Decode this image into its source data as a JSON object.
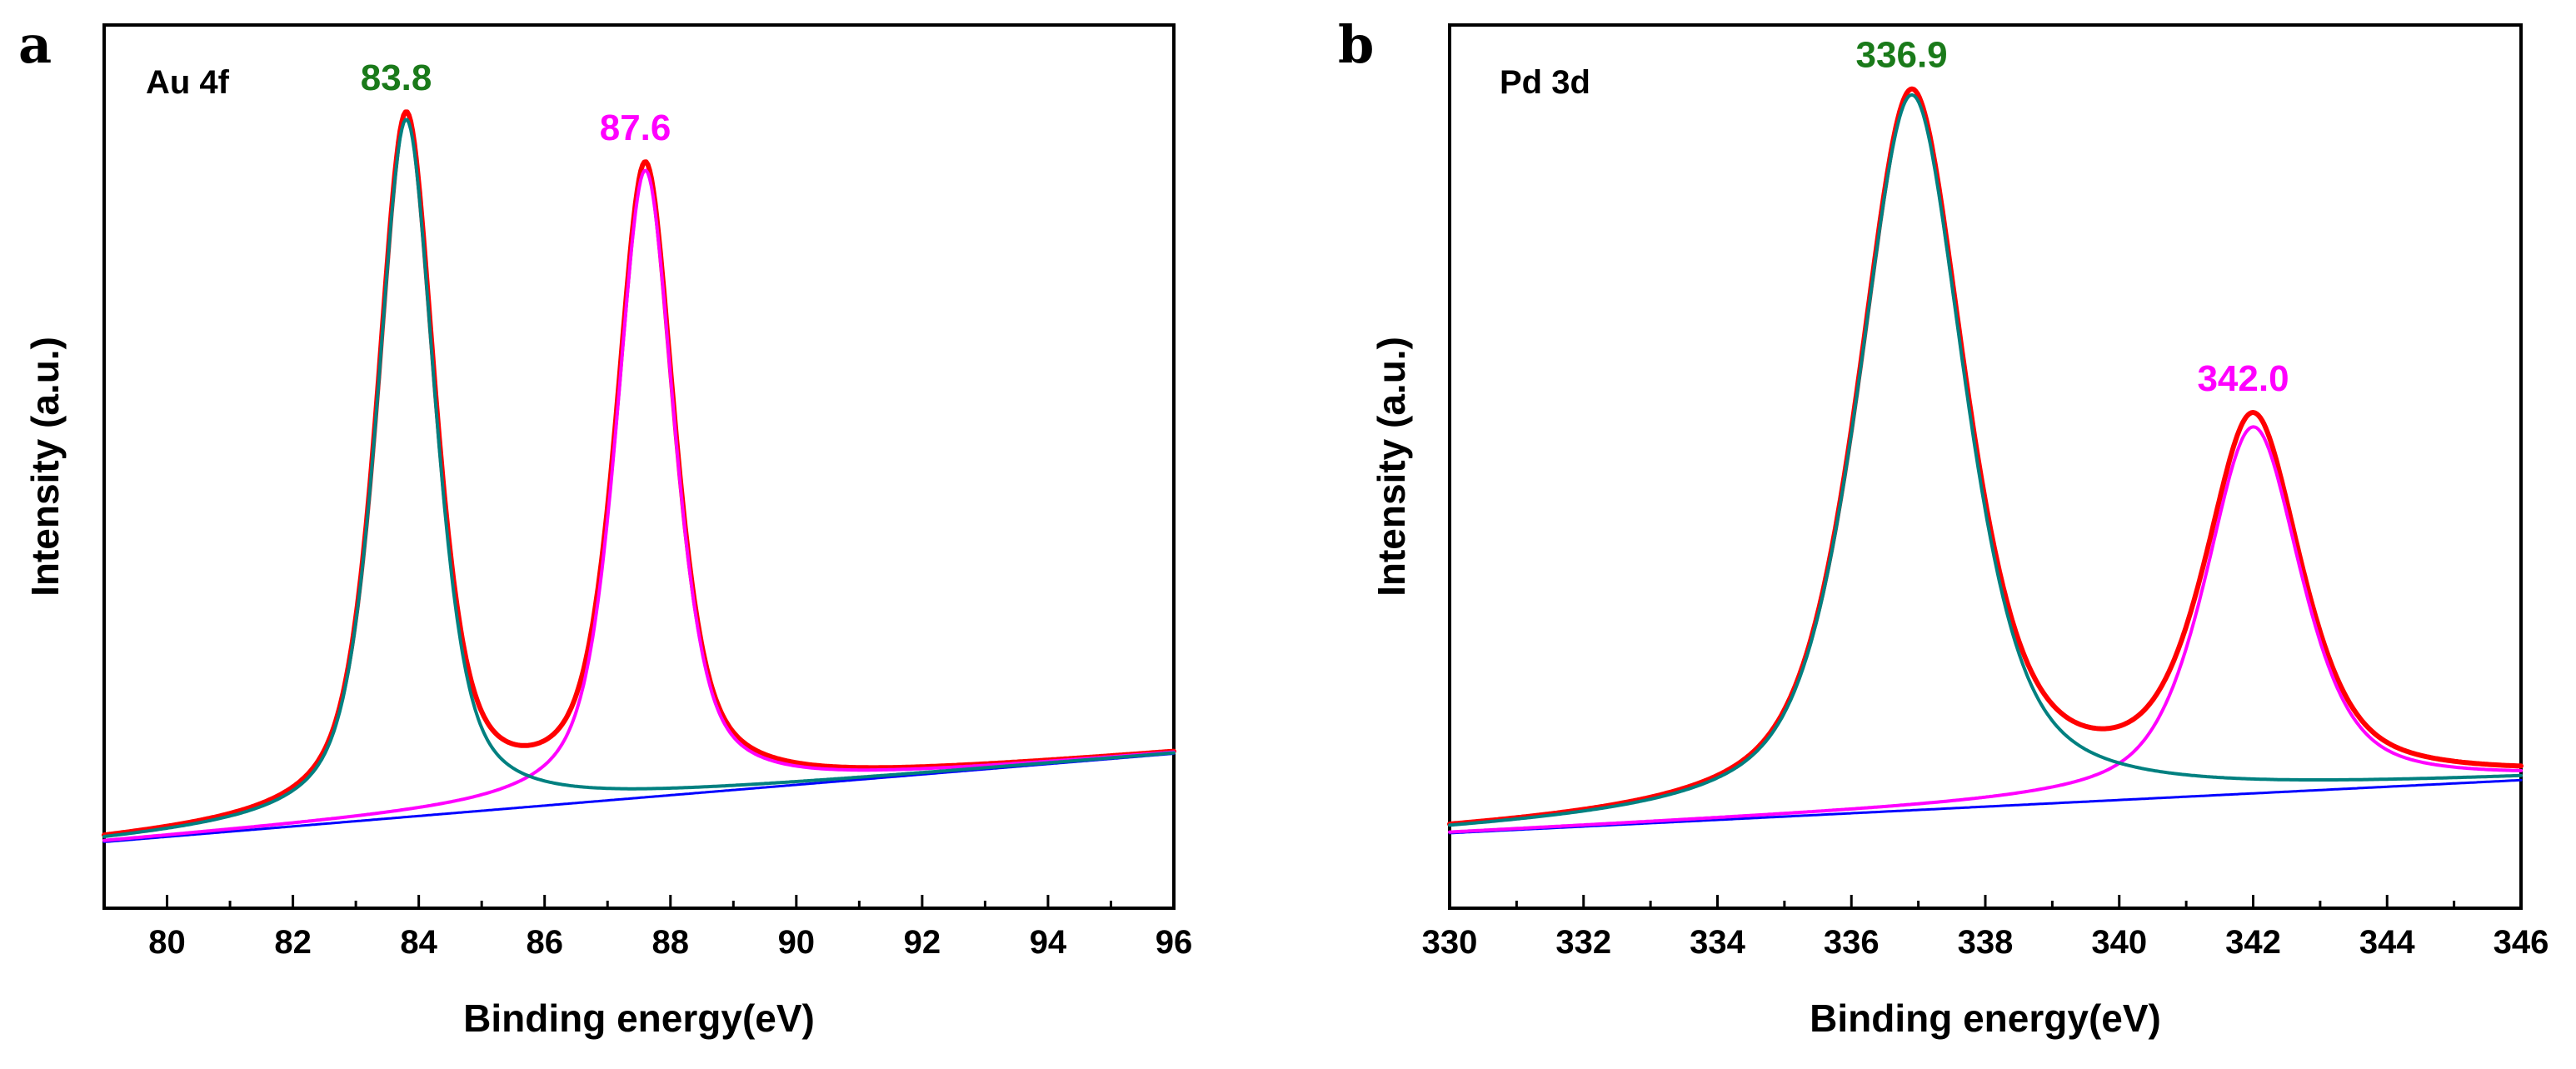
{
  "chart_data": [
    {
      "panel": "a",
      "type": "line",
      "title": "Au 4f",
      "xlabel": "Binding energy(eV)",
      "ylabel": "Intensity (a.u.)",
      "xlim": [
        79,
        96
      ],
      "ylim": [
        0,
        1.0
      ],
      "xticks": [
        "80",
        "82",
        "84",
        "86",
        "88",
        "90",
        "92",
        "94",
        "96"
      ],
      "xtick_values": [
        80,
        82,
        84,
        86,
        88,
        90,
        92,
        94,
        96
      ],
      "baseline": {
        "start": 0.075,
        "end": 0.175
      },
      "series": [
        {
          "name": "envelope",
          "color": "#ff0000",
          "role": "sum"
        },
        {
          "name": "component-1",
          "color": "#008080",
          "center": 83.8,
          "height": 0.79,
          "hwhm": 0.55,
          "shape": "pseudo-voigt"
        },
        {
          "name": "component-2",
          "color": "#ff00ff",
          "center": 87.6,
          "height": 0.71,
          "hwhm": 0.55,
          "shape": "pseudo-voigt"
        },
        {
          "name": "background",
          "color": "#0000ff",
          "role": "baseline"
        }
      ],
      "peak_labels": [
        {
          "text": "83.8",
          "x": 83.8,
          "color": "#1a7a1a"
        },
        {
          "text": "87.6",
          "x": 87.6,
          "color": "#ff00ff"
        }
      ]
    },
    {
      "panel": "b",
      "type": "line",
      "title": "Pd 3d",
      "xlabel": "Binding energy(eV)",
      "ylabel": "Intensity (a.u.)",
      "xlim": [
        330,
        346
      ],
      "ylim": [
        0,
        1.0
      ],
      "xticks": [
        "330",
        "332",
        "334",
        "336",
        "338",
        "340",
        "342",
        "344",
        "346"
      ],
      "xtick_values": [
        330,
        332,
        334,
        336,
        338,
        340,
        342,
        344,
        346
      ],
      "baseline": {
        "start": 0.085,
        "end": 0.145
      },
      "series": [
        {
          "name": "envelope",
          "color": "#ff0000",
          "role": "sum"
        },
        {
          "name": "component-1",
          "color": "#008080",
          "center": 336.9,
          "height": 0.81,
          "hwhm": 0.95,
          "shape": "pseudo-voigt"
        },
        {
          "name": "component-2",
          "color": "#ff00ff",
          "center": 342.0,
          "height": 0.415,
          "hwhm": 0.85,
          "shape": "pseudo-voigt"
        },
        {
          "name": "background",
          "color": "#0000ff",
          "role": "baseline"
        }
      ],
      "peak_labels": [
        {
          "text": "336.9",
          "x": 336.9,
          "color": "#1a7a1a"
        },
        {
          "text": "342.0",
          "x": 342.0,
          "color": "#ff00ff"
        }
      ]
    }
  ]
}
